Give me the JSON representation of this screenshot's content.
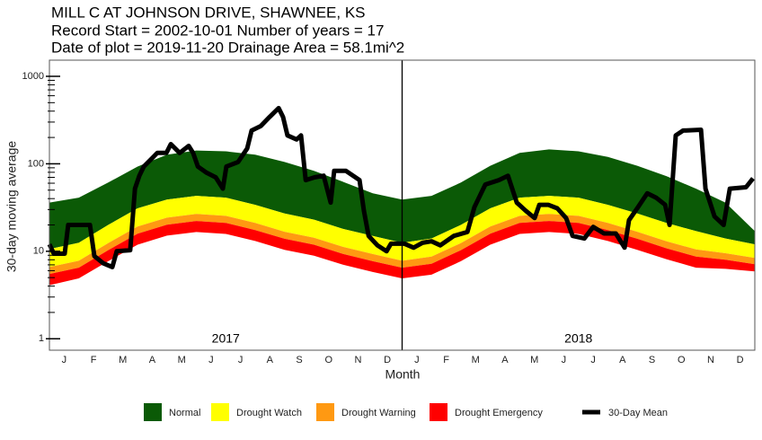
{
  "chart_data": {
    "type": "line",
    "title_lines": [
      "MILL C AT JOHNSON DRIVE, SHAWNEE, KS",
      "Record Start = 2002-10-01  Number of years = 17",
      "Date of plot = 2019-11-20  Drainage Area = 58.1mi^2"
    ],
    "x_label": "Month",
    "y_label": "30-day moving average",
    "log_y": true,
    "xlim": [
      0,
      24
    ],
    "ylim": [
      0.74,
      1530
    ],
    "yticks": [
      1,
      10,
      100,
      1000
    ],
    "yminor": [
      2,
      3,
      4,
      5,
      6,
      7,
      8,
      9,
      20,
      30,
      40,
      50,
      60,
      70,
      80,
      90,
      200,
      300,
      400,
      500,
      600,
      700,
      800,
      900
    ],
    "categories": [
      "J",
      "F",
      "M",
      "A",
      "M",
      "J",
      "J",
      "A",
      "S",
      "O",
      "N",
      "D",
      "J",
      "F",
      "M",
      "A",
      "M",
      "J",
      "J",
      "A",
      "S",
      "O",
      "N",
      "D"
    ],
    "year_labels": [
      "2017",
      "2018"
    ],
    "band_x": [
      0,
      1,
      2,
      3,
      4,
      5,
      6,
      7,
      8,
      9,
      10,
      11,
      12,
      13,
      14,
      15,
      16,
      17,
      18,
      19,
      20,
      21,
      22,
      23,
      24
    ],
    "bands": [
      {
        "name": "Normal",
        "color": "#0b5a06",
        "high": [
          36,
          41,
          61,
          93,
          127,
          142,
          139,
          127,
          105,
          83,
          62,
          46,
          39,
          43,
          61,
          95,
          133,
          146,
          139,
          120,
          95,
          72,
          52,
          36,
          17
        ],
        "low": [
          10.6,
          12.5,
          20,
          31,
          39,
          43,
          41,
          34,
          27,
          23,
          18,
          15,
          12.5,
          14,
          20,
          31,
          41,
          43,
          41,
          34,
          27,
          21,
          17,
          14,
          12
        ]
      },
      {
        "name": "Drought Watch",
        "color": "#ffff00",
        "high": [
          10.6,
          12.5,
          20,
          31,
          39,
          43,
          41,
          34,
          27,
          23,
          18,
          15,
          12.5,
          14,
          20,
          31,
          41,
          43,
          41,
          34,
          27,
          21,
          17,
          14,
          12
        ],
        "low": [
          6.6,
          7.8,
          12.4,
          19.2,
          24.2,
          26.7,
          25.4,
          21.1,
          16.7,
          14.3,
          11.2,
          9.3,
          7.8,
          8.7,
          12.4,
          19.2,
          25.4,
          26.7,
          25.4,
          21.1,
          16.7,
          13,
          10.5,
          9.5,
          8.4
        ]
      },
      {
        "name": "Drought Warning",
        "color": "#ff9912",
        "high": [
          6.6,
          7.8,
          12.4,
          19.2,
          24.2,
          26.7,
          25.4,
          21.1,
          16.7,
          14.3,
          11.2,
          9.3,
          7.8,
          8.7,
          12.4,
          19.2,
          25.4,
          26.7,
          25.4,
          21.1,
          16.7,
          13,
          10.5,
          9.5,
          8.4
        ],
        "low": [
          5.5,
          6.5,
          10.3,
          15.9,
          20.1,
          22.2,
          21.1,
          17.5,
          13.9,
          11.9,
          9.3,
          7.7,
          6.5,
          7.2,
          10.3,
          15.9,
          21.1,
          22.2,
          21.1,
          17.5,
          13.9,
          10.8,
          8.7,
          8,
          7.1
        ]
      },
      {
        "name": "Drought Emergency",
        "color": "#ff0000",
        "high": [
          5.5,
          6.5,
          10.3,
          15.9,
          20.1,
          22.2,
          21.1,
          17.5,
          13.9,
          11.9,
          9.3,
          7.7,
          6.5,
          7.2,
          10.3,
          15.9,
          21.1,
          22.2,
          21.1,
          17.5,
          13.9,
          10.8,
          8.7,
          8,
          7.1
        ],
        "low": [
          4.1,
          4.9,
          7.7,
          11.9,
          15.1,
          16.6,
          15.8,
          13.1,
          10.4,
          8.9,
          7,
          5.8,
          4.9,
          5.4,
          7.7,
          11.9,
          15.8,
          16.6,
          15.8,
          13.1,
          10.4,
          8.1,
          6.5,
          6.3,
          5.9
        ]
      }
    ],
    "series": [
      {
        "name": "30-Day Mean",
        "color": "#000000",
        "x": [
          0,
          0.15,
          0.52,
          0.64,
          1.38,
          1.53,
          1.83,
          2.14,
          2.29,
          2.75,
          2.91,
          3.06,
          3.21,
          3.52,
          3.67,
          3.98,
          4.13,
          4.43,
          4.74,
          4.89,
          5.05,
          5.35,
          5.66,
          5.9,
          6.02,
          6.42,
          6.73,
          6.88,
          7.19,
          7.49,
          7.8,
          7.95,
          8.1,
          8.41,
          8.56,
          8.72,
          9.02,
          9.33,
          9.57,
          9.69,
          10.09,
          10.55,
          10.7,
          10.86,
          11.16,
          11.47,
          11.62,
          12.08,
          12.39,
          12.69,
          13,
          13.3,
          13.76,
          14.22,
          14.46,
          14.83,
          15.29,
          15.6,
          15.9,
          16.21,
          16.51,
          16.67,
          16.97,
          17.28,
          17.58,
          17.8,
          18.2,
          18.5,
          18.87,
          19.27,
          19.57,
          19.72,
          20.03,
          20.34,
          20.64,
          20.95,
          21.1,
          21.31,
          21.56,
          22.17,
          22.32,
          22.63,
          22.94,
          23.15,
          23.7,
          23.94
        ],
        "values": [
          12,
          9.4,
          9.4,
          20,
          20,
          8.8,
          7.3,
          6.6,
          10,
          10.3,
          52,
          73,
          93,
          118,
          133,
          133,
          168,
          133,
          160,
          133,
          93,
          79,
          70,
          52,
          93,
          105,
          150,
          240,
          270,
          343,
          433,
          343,
          211,
          190,
          211,
          65,
          70,
          73,
          36,
          83,
          83,
          65,
          29,
          15,
          11.7,
          10,
          12.2,
          12.2,
          11,
          12.5,
          13,
          11.7,
          15,
          16.6,
          32,
          58,
          65,
          73,
          36,
          29,
          24,
          34,
          34,
          31,
          24,
          15,
          14,
          19,
          16,
          16,
          11,
          22.7,
          32,
          46,
          41,
          34,
          20,
          211,
          240,
          245,
          52,
          25,
          20,
          52,
          54,
          68
        ]
      }
    ]
  }
}
